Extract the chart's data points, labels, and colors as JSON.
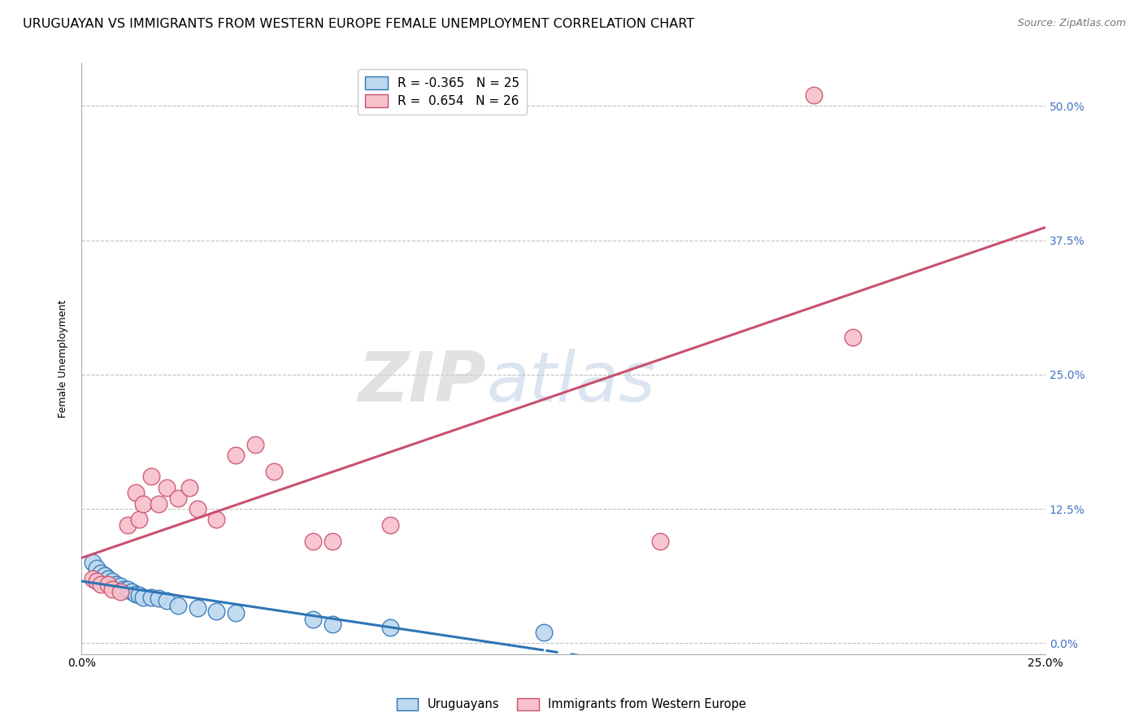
{
  "title": "URUGUAYAN VS IMMIGRANTS FROM WESTERN EUROPE FEMALE UNEMPLOYMENT CORRELATION CHART",
  "source": "Source: ZipAtlas.com",
  "ylabel": "Female Unemployment",
  "xlim": [
    0.0,
    0.25
  ],
  "ylim": [
    -0.01,
    0.54
  ],
  "yticks": [
    0.0,
    0.125,
    0.25,
    0.375,
    0.5
  ],
  "ytick_labels": [
    "0.0%",
    "12.5%",
    "25.0%",
    "37.5%",
    "50.0%"
  ],
  "xticks": [
    0.0,
    0.0625,
    0.125,
    0.1875,
    0.25
  ],
  "xtick_labels": [
    "0.0%",
    "",
    "",
    "",
    "25.0%"
  ],
  "watermark_zip": "ZIP",
  "watermark_atlas": "atlas",
  "legend_line1": "R = -0.365   N = 25",
  "legend_line2": "R =  0.654   N = 26",
  "legend_label_uruguayans": "Uruguayans",
  "legend_label_immigrants": "Immigrants from Western Europe",
  "uruguayan_color": "#bdd7ee",
  "uruguayan_edge": "#2e75b6",
  "immigrant_color": "#f8c0cb",
  "immigrant_edge": "#c9506e",
  "uruguayan_line_color": "#2e75b6",
  "immigrant_line_color": "#c9506e",
  "right_tick_color": "#4472c4",
  "background_color": "#ffffff",
  "grid_color": "#c0c0c0",
  "title_fontsize": 11.5,
  "source_fontsize": 9,
  "axis_label_fontsize": 9,
  "tick_fontsize": 10,
  "legend_fontsize": 11,
  "uruguayan_points": [
    [
      0.003,
      0.075
    ],
    [
      0.004,
      0.07
    ],
    [
      0.005,
      0.065
    ],
    [
      0.006,
      0.063
    ],
    [
      0.007,
      0.06
    ],
    [
      0.008,
      0.058
    ],
    [
      0.009,
      0.055
    ],
    [
      0.01,
      0.053
    ],
    [
      0.011,
      0.05
    ],
    [
      0.012,
      0.05
    ],
    [
      0.013,
      0.048
    ],
    [
      0.014,
      0.046
    ],
    [
      0.015,
      0.045
    ],
    [
      0.016,
      0.043
    ],
    [
      0.018,
      0.043
    ],
    [
      0.02,
      0.042
    ],
    [
      0.022,
      0.04
    ],
    [
      0.025,
      0.035
    ],
    [
      0.03,
      0.033
    ],
    [
      0.035,
      0.03
    ],
    [
      0.04,
      0.028
    ],
    [
      0.06,
      0.022
    ],
    [
      0.065,
      0.018
    ],
    [
      0.08,
      0.015
    ],
    [
      0.12,
      0.01
    ]
  ],
  "immigrant_points": [
    [
      0.003,
      0.06
    ],
    [
      0.004,
      0.058
    ],
    [
      0.005,
      0.055
    ],
    [
      0.007,
      0.055
    ],
    [
      0.008,
      0.05
    ],
    [
      0.01,
      0.048
    ],
    [
      0.012,
      0.11
    ],
    [
      0.014,
      0.14
    ],
    [
      0.015,
      0.115
    ],
    [
      0.016,
      0.13
    ],
    [
      0.018,
      0.155
    ],
    [
      0.02,
      0.13
    ],
    [
      0.022,
      0.145
    ],
    [
      0.025,
      0.135
    ],
    [
      0.028,
      0.145
    ],
    [
      0.03,
      0.125
    ],
    [
      0.035,
      0.115
    ],
    [
      0.04,
      0.175
    ],
    [
      0.045,
      0.185
    ],
    [
      0.05,
      0.16
    ],
    [
      0.06,
      0.095
    ],
    [
      0.065,
      0.095
    ],
    [
      0.08,
      0.11
    ],
    [
      0.15,
      0.095
    ],
    [
      0.19,
      0.51
    ],
    [
      0.2,
      0.285
    ]
  ]
}
